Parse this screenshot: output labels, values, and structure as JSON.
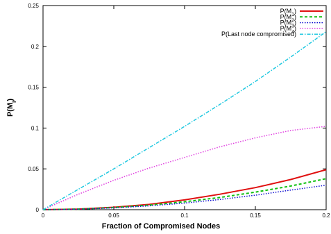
{
  "chart_data": {
    "type": "line",
    "xlabel": "Fraction of Compromised Nodes",
    "ylabel": "P(M_i)",
    "xlim": [
      0,
      0.2
    ],
    "ylim": [
      0,
      0.25
    ],
    "xticks": [
      0,
      0.05,
      0.1,
      0.15,
      0.2
    ],
    "xtick_labels": [
      "0",
      "0.05",
      "0.1",
      "0.15",
      "0.2"
    ],
    "yticks": [
      0,
      0.05,
      0.1,
      0.15,
      0.2,
      0.25
    ],
    "ytick_labels": [
      "0",
      "0.05",
      "0.1",
      "0.15",
      "0.2",
      "0.25"
    ],
    "grid": false,
    "legend_position": "top-right",
    "x": [
      0,
      0.025,
      0.05,
      0.075,
      0.1,
      0.125,
      0.15,
      0.175,
      0.2
    ],
    "series": [
      {
        "name": "P(M_1)",
        "color": "#e01010",
        "dash": "solid",
        "values": [
          0,
          0.0008,
          0.003,
          0.0065,
          0.012,
          0.019,
          0.027,
          0.037,
          0.049
        ]
      },
      {
        "name": "P(M_2)",
        "color": "#10c010",
        "dash": "dashed",
        "values": [
          0,
          0.0007,
          0.0026,
          0.0056,
          0.0097,
          0.015,
          0.0215,
          0.029,
          0.038
        ]
      },
      {
        "name": "P(M_3)",
        "color": "#1010d0",
        "dash": "dotted",
        "values": [
          0,
          0.0006,
          0.0022,
          0.0047,
          0.0081,
          0.0125,
          0.0178,
          0.024,
          0.03
        ]
      },
      {
        "name": "P(M_4)",
        "color": "#e040e0",
        "dash": "dotted",
        "values": [
          0,
          0.019,
          0.036,
          0.051,
          0.064,
          0.077,
          0.088,
          0.097,
          0.102
        ]
      },
      {
        "name": "P(Last node compromised)",
        "color": "#20c8e0",
        "dash": "dashdot",
        "values": [
          0,
          0.025,
          0.05,
          0.076,
          0.102,
          0.129,
          0.157,
          0.187,
          0.218
        ]
      }
    ]
  }
}
